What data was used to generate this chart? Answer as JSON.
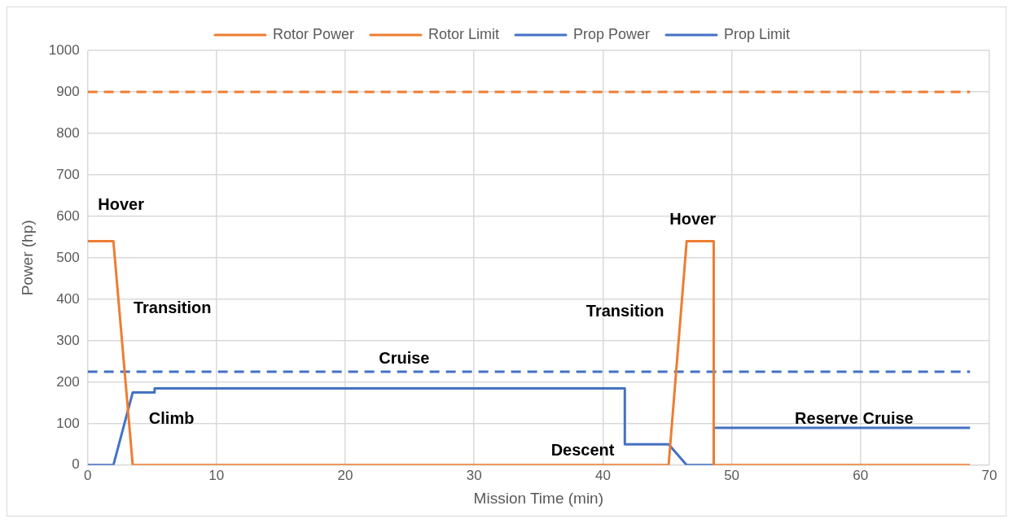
{
  "chart_data": {
    "type": "line",
    "xlabel": "Mission Time (min)",
    "ylabel": "Power (hp)",
    "xlim": [
      0,
      70
    ],
    "xticks": [
      0,
      10,
      20,
      30,
      40,
      50,
      60,
      70
    ],
    "ylim": [
      0,
      1000
    ],
    "yticks": [
      0,
      100,
      200,
      300,
      400,
      500,
      600,
      700,
      800,
      900,
      1000
    ],
    "grid": true,
    "legend": "top",
    "marker": "none",
    "series": [
      {
        "name": "Rotor Power",
        "color": "#ed7d31",
        "line_style": "solid",
        "x": [
          0,
          2.0,
          3.5,
          45.1,
          46.5,
          48.6,
          48.6,
          68.5
        ],
        "values": [
          540,
          540,
          0,
          0,
          540,
          540,
          0,
          0
        ]
      },
      {
        "name": "Rotor Limit",
        "color": "#ed7d31",
        "line_style": "dashed",
        "x": [
          0,
          68.5
        ],
        "values": [
          900,
          900
        ]
      },
      {
        "name": "Prop Power",
        "color": "#4472c4",
        "line_style": "solid",
        "x": [
          0,
          2.0,
          3.5,
          5.2,
          5.2,
          41.7,
          41.7,
          45.1,
          46.5,
          48.6,
          48.6,
          68.5
        ],
        "values": [
          0,
          0,
          175,
          175,
          185,
          185,
          50,
          50,
          0,
          0,
          90,
          90
        ]
      },
      {
        "name": "Prop Limit",
        "color": "#4472c4",
        "line_style": "dashed",
        "x": [
          0,
          68.5
        ],
        "values": [
          225,
          225
        ]
      }
    ],
    "annotations": [
      "Hover",
      "Transition",
      "Cruise",
      "Climb",
      "Descent",
      "Hover",
      "Transition",
      "Reserve Cruise"
    ]
  }
}
